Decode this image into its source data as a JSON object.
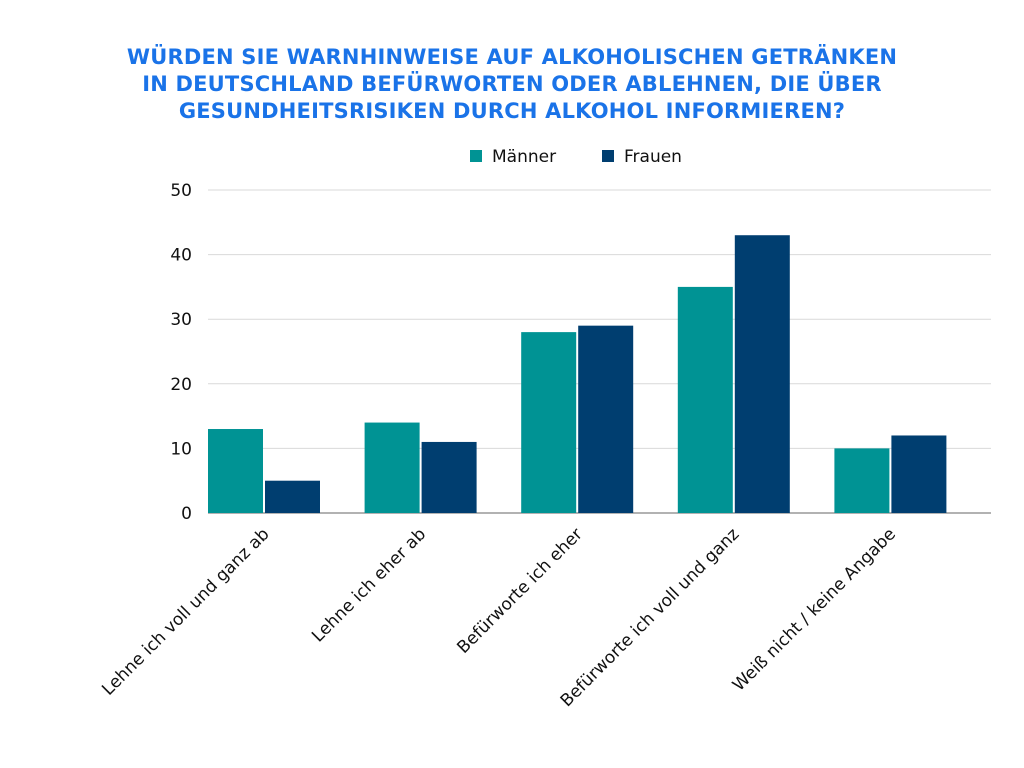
{
  "chart_data": {
    "type": "bar",
    "title_lines": [
      "WÜRDEN SIE WARNHINWEISE AUF ALKOHOLISCHEN GETRÄNKEN",
      "IN DEUTSCHLAND BEFÜRWORTEN ODER ABLEHNEN, DIE ÜBER",
      "GESUNDHEITSRISIKEN DURCH ALKOHOL INFORMIEREN?"
    ],
    "categories": [
      "Lehne ich voll und ganz ab",
      "Lehne ich eher ab",
      "Befürworte ich eher",
      "Befürworte ich voll und ganz",
      "Weiß nicht / keine Angabe"
    ],
    "series": [
      {
        "name": "Männer",
        "color": "#009394",
        "values": [
          13,
          14,
          28,
          35,
          10
        ]
      },
      {
        "name": "Frauen",
        "color": "#003e70",
        "values": [
          5,
          11,
          29,
          43,
          12
        ]
      }
    ],
    "ylim": [
      0,
      50
    ],
    "yticks": [
      0,
      10,
      20,
      30,
      40,
      50
    ],
    "grid": true,
    "legend_position": "top-center",
    "title_color": "#1a73e8"
  }
}
